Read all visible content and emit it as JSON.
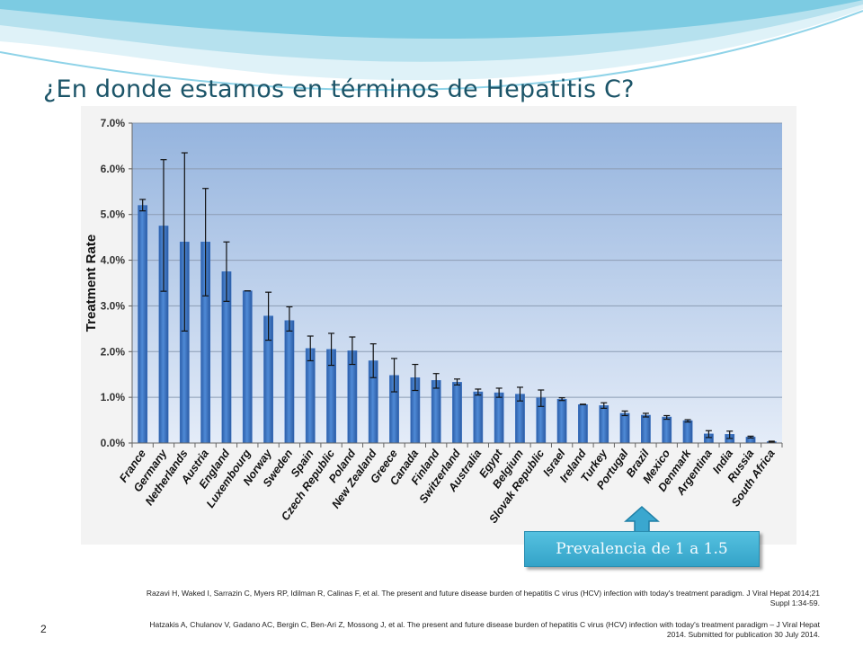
{
  "slide": {
    "title": "¿En donde estamos en términos de Hepatitis C?",
    "page_number": "2"
  },
  "callout": {
    "label": "Prevalencia de 1 a 1.5"
  },
  "references": [
    "Razavi H, Waked I, Sarrazin C, Myers RP, Idilman R, Calinas F, et al. The present and future disease burden of hepatitis C virus (HCV) infection with today's treatment paradigm. J Viral Hepat 2014;21 Suppl 1:34-59.",
    "Hatzakis A, Chulanov V, Gadano AC, Bergin C, Ben-Ari Z, Mossong J, et al. The present and future disease burden of hepatitis C virus (HCV) infection with today's treatment paradigm – J Viral Hepat 2014. Submitted for publication 30 July 2014."
  ],
  "colors": {
    "bar": "#3a72c4",
    "plot_top": "#95b4de",
    "plot_bottom": "#e4ecf8",
    "title": "#1b5468",
    "callout": "#3fb0d6"
  },
  "chart_data": {
    "type": "bar",
    "title": "",
    "xlabel": "",
    "ylabel": "Treatment Rate",
    "ylim": [
      0,
      7
    ],
    "yticks": [
      "0.0%",
      "1.0%",
      "2.0%",
      "3.0%",
      "4.0%",
      "5.0%",
      "6.0%",
      "7.0%"
    ],
    "grid": true,
    "legend": "none",
    "categories": [
      "France",
      "Germany",
      "Netherlands",
      "Austria",
      "England",
      "Luxembourg",
      "Norway",
      "Sweden",
      "Spain",
      "Czech Republic",
      "Poland",
      "New Zealand",
      "Greece",
      "Canada",
      "Finland",
      "Switzerland",
      "Australia",
      "Egypt",
      "Belgium",
      "Slovak Republic",
      "Israel",
      "Ireland",
      "Turkey",
      "Portugal",
      "Brazil",
      "Mexico",
      "Denmark",
      "Argentina",
      "India",
      "Russia",
      "South Africa"
    ],
    "values": [
      5.2,
      4.75,
      4.4,
      4.4,
      3.75,
      3.33,
      2.78,
      2.68,
      2.07,
      2.05,
      2.02,
      1.8,
      1.48,
      1.43,
      1.37,
      1.33,
      1.12,
      1.1,
      1.07,
      0.99,
      0.96,
      0.84,
      0.82,
      0.65,
      0.61,
      0.57,
      0.49,
      0.2,
      0.19,
      0.13,
      0.03
    ],
    "error_low": [
      5.08,
      3.32,
      2.45,
      3.22,
      3.1,
      3.33,
      2.25,
      2.45,
      1.8,
      1.7,
      1.72,
      1.43,
      1.12,
      1.15,
      1.2,
      1.27,
      1.05,
      1.0,
      0.92,
      0.8,
      0.93,
      0.84,
      0.76,
      0.6,
      0.57,
      0.52,
      0.46,
      0.12,
      0.1,
      0.11,
      0.02
    ],
    "error_high": [
      5.33,
      6.2,
      6.35,
      5.57,
      4.4,
      3.33,
      3.3,
      2.98,
      2.34,
      2.4,
      2.32,
      2.17,
      1.85,
      1.72,
      1.52,
      1.4,
      1.18,
      1.2,
      1.22,
      1.16,
      0.99,
      0.85,
      0.88,
      0.7,
      0.65,
      0.6,
      0.51,
      0.27,
      0.26,
      0.15,
      0.04
    ]
  }
}
